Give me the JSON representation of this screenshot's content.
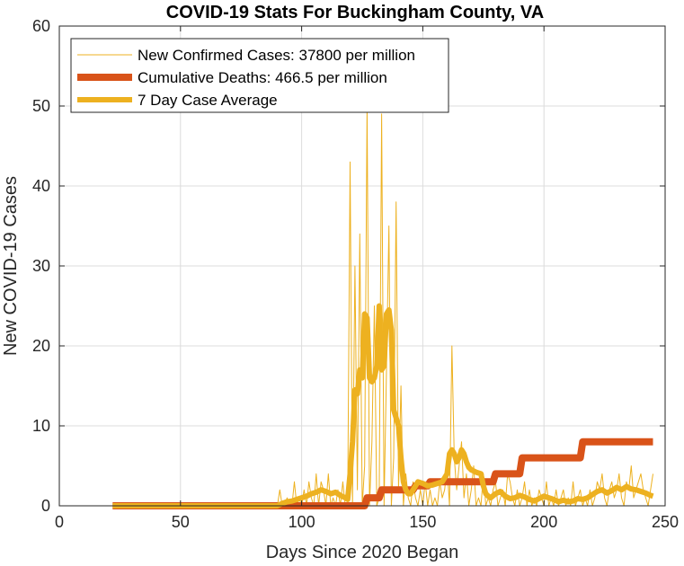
{
  "chart_data": {
    "type": "line",
    "title": "COVID-19 Stats For Buckingham County, VA",
    "xlabel": "Days Since 2020 Began",
    "ylabel": "New COVID-19 Cases",
    "xlim": [
      0,
      250
    ],
    "ylim": [
      0,
      60
    ],
    "xticks": [
      0,
      50,
      100,
      150,
      200,
      250
    ],
    "yticks": [
      0,
      10,
      20,
      30,
      40,
      50,
      60
    ],
    "grid": true,
    "legend_position": "top-left",
    "series": [
      {
        "name": "New Confirmed Cases: 37800 per million",
        "color": "#EDB120",
        "style": "thin",
        "x": [
          22,
          90,
          91,
          92,
          93,
          94,
          95,
          96,
          97,
          98,
          99,
          100,
          101,
          102,
          103,
          104,
          105,
          106,
          107,
          108,
          109,
          110,
          111,
          112,
          113,
          114,
          115,
          116,
          117,
          118,
          119,
          120,
          121,
          122,
          123,
          124,
          125,
          126,
          127,
          128,
          129,
          130,
          131,
          132,
          133,
          134,
          135,
          136,
          137,
          138,
          139,
          140,
          141,
          142,
          143,
          144,
          145,
          146,
          147,
          148,
          149,
          150,
          151,
          152,
          153,
          154,
          155,
          156,
          157,
          158,
          159,
          160,
          161,
          162,
          163,
          164,
          165,
          166,
          167,
          168,
          169,
          170,
          171,
          172,
          173,
          174,
          175,
          176,
          177,
          178,
          179,
          180,
          181,
          182,
          183,
          184,
          185,
          186,
          187,
          188,
          189,
          190,
          191,
          192,
          193,
          194,
          195,
          196,
          197,
          198,
          199,
          200,
          201,
          202,
          203,
          204,
          205,
          206,
          207,
          208,
          209,
          210,
          211,
          212,
          213,
          214,
          215,
          216,
          217,
          218,
          219,
          220,
          221,
          222,
          223,
          224,
          225,
          226,
          227,
          228,
          229,
          230,
          231,
          232,
          233,
          234,
          235,
          236,
          237,
          238,
          239,
          240,
          241,
          242,
          243,
          244,
          245
        ],
        "y": [
          0,
          0,
          2,
          0,
          0,
          1,
          0,
          0,
          3,
          0,
          1,
          0,
          2,
          0,
          3,
          1,
          0,
          4,
          0,
          3,
          2,
          0,
          4,
          0,
          1,
          0,
          2,
          0,
          3,
          0,
          0,
          43,
          0,
          30,
          2,
          34,
          0,
          5,
          50,
          0,
          8,
          25,
          0,
          1,
          49,
          0,
          17,
          35,
          0,
          6,
          38,
          2,
          15,
          0,
          4,
          1,
          0,
          3,
          1,
          0,
          2,
          0,
          3,
          0,
          2,
          0,
          1,
          0,
          3,
          1,
          2,
          5,
          0,
          20,
          6,
          2,
          5,
          8,
          1,
          4,
          0,
          2,
          5,
          0,
          1,
          0,
          4,
          0,
          1,
          0,
          2,
          3,
          0,
          1,
          2,
          0,
          4,
          3,
          1,
          0,
          2,
          0,
          1,
          3,
          0,
          2,
          0,
          1,
          0,
          2,
          1,
          0,
          3,
          0,
          1,
          0,
          2,
          0,
          1,
          2,
          0,
          1,
          0,
          3,
          0,
          1,
          2,
          0,
          1,
          0,
          2,
          0,
          1,
          3,
          2,
          4,
          1,
          0,
          2,
          3,
          1,
          2,
          4,
          1,
          0,
          3,
          2,
          5,
          1,
          2,
          3,
          4,
          2,
          1,
          0,
          2,
          4
        ]
      },
      {
        "name": "Cumulative Deaths: 466.5 per million",
        "color": "#D95319",
        "style": "thick",
        "x": [
          22,
          126,
          127,
          132,
          133,
          146,
          147,
          152,
          153,
          179,
          180,
          190,
          191,
          215,
          216,
          245
        ],
        "y": [
          0,
          0,
          1,
          1,
          2,
          2,
          2.5,
          2.5,
          3,
          3,
          4,
          4,
          6,
          6,
          8,
          8
        ]
      },
      {
        "name": "7 Day Case Average",
        "color": "#EDB120",
        "style": "medium",
        "x": [
          22,
          90,
          92,
          94,
          96,
          98,
          100,
          102,
          104,
          106,
          108,
          110,
          112,
          114,
          116,
          118,
          119,
          120,
          121,
          122,
          123,
          124,
          125,
          126,
          127,
          128,
          129,
          130,
          131,
          132,
          133,
          134,
          135,
          136,
          137,
          138,
          139,
          140,
          141,
          142,
          143,
          144,
          145,
          146,
          147,
          148,
          150,
          152,
          154,
          156,
          158,
          160,
          161,
          162,
          163,
          164,
          165,
          166,
          167,
          168,
          169,
          170,
          172,
          174,
          175,
          176,
          177,
          178,
          180,
          182,
          184,
          186,
          188,
          190,
          192,
          194,
          196,
          198,
          200,
          202,
          204,
          206,
          208,
          210,
          212,
          214,
          216,
          218,
          220,
          222,
          224,
          226,
          228,
          230,
          232,
          234,
          236,
          238,
          240,
          242,
          244,
          245
        ],
        "y": [
          0,
          0,
          0.3,
          0.5,
          0.6,
          0.8,
          1.0,
          1.2,
          1.5,
          1.7,
          2.0,
          1.8,
          1.5,
          1.7,
          1.3,
          1.0,
          0.8,
          4.0,
          8.0,
          14.5,
          14.0,
          17.0,
          16.0,
          24.0,
          23.5,
          16.0,
          15.5,
          16.0,
          17.5,
          25.0,
          17.0,
          17.5,
          24.0,
          24.5,
          22.0,
          12.0,
          11.0,
          10.0,
          6.0,
          3.0,
          2.0,
          1.5,
          1.5,
          2.0,
          2.5,
          3.0,
          2.8,
          2.5,
          2.6,
          2.8,
          3.0,
          4.0,
          6.5,
          7.0,
          6.5,
          5.5,
          6.0,
          7.0,
          6.5,
          5.5,
          4.8,
          4.5,
          4.2,
          4.0,
          2.5,
          1.5,
          1.2,
          1.0,
          1.5,
          1.8,
          1.2,
          0.9,
          1.0,
          1.3,
          1.1,
          0.8,
          0.6,
          0.9,
          1.2,
          1.0,
          0.8,
          0.5,
          0.7,
          0.5,
          0.6,
          0.9,
          0.8,
          1.0,
          1.4,
          1.8,
          2.0,
          1.6,
          1.9,
          2.3,
          2.0,
          2.4,
          2.1,
          2.0,
          1.8,
          1.6,
          1.3,
          1.2
        ]
      }
    ]
  }
}
